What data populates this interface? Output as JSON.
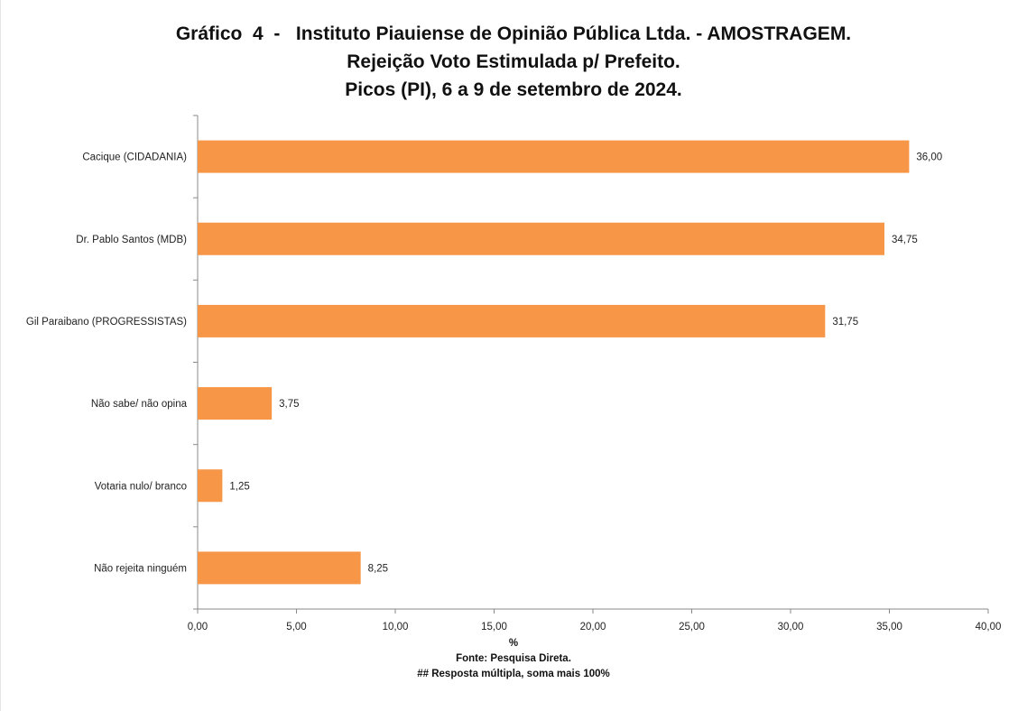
{
  "title": {
    "line1": "Gráfico  4  -   Instituto Piauiense de Opinião Pública Ltda. - AMOSTRAGEM.",
    "line2": "Rejeição Voto Estimulada p/ Prefeito.",
    "line3": "Picos (PI), 6 a 9 de setembro de 2024."
  },
  "footer": {
    "axis_unit": "%",
    "source": "Fonte: Pesquisa Direta.",
    "note": "## Resposta múltipla, soma mais 100%"
  },
  "chart_data": {
    "type": "bar",
    "orientation": "horizontal",
    "categories": [
      "Cacique (CIDADANIA)",
      "Dr. Pablo Santos (MDB)",
      "Gil Paraibano (PROGRESSISTAS)",
      "Não sabe/ não opina",
      "Votaria nulo/ branco",
      "Não rejeita ninguém"
    ],
    "values": [
      36.0,
      34.75,
      31.75,
      3.75,
      1.25,
      8.25
    ],
    "value_labels": [
      "36,00",
      "34,75",
      "31,75",
      "3,75",
      "1,25",
      "8,25"
    ],
    "xlabel": "%",
    "xlim": [
      0,
      40
    ],
    "xticks": [
      0,
      5,
      10,
      15,
      20,
      25,
      30,
      35,
      40
    ],
    "xtick_labels": [
      "0,00",
      "5,00",
      "10,00",
      "15,00",
      "20,00",
      "25,00",
      "30,00",
      "35,00",
      "40,00"
    ],
    "grid": false,
    "legend": "none",
    "bar_color": "#F79646"
  }
}
